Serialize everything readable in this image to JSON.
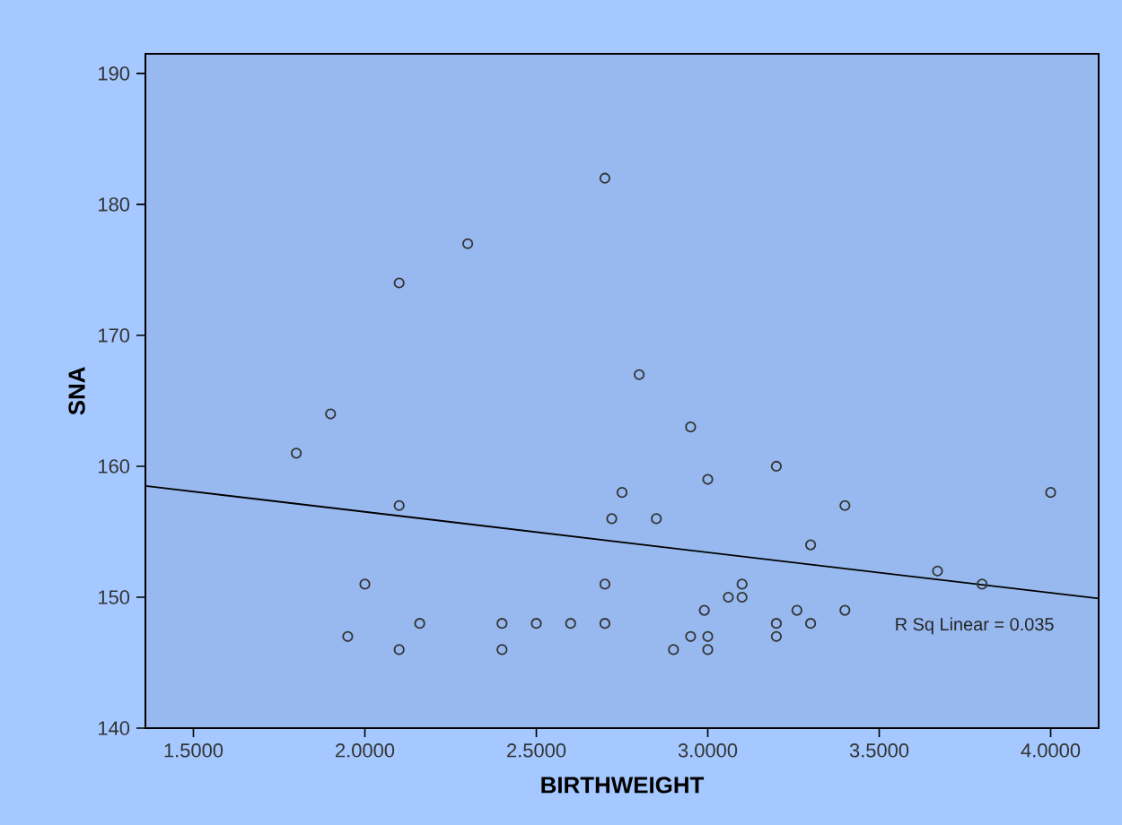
{
  "chart_data": {
    "type": "scatter",
    "xlabel": "BIRTHWEIGHT",
    "ylabel": "SNA",
    "xlim": [
      1.36,
      4.14
    ],
    "ylim": [
      140,
      191.5
    ],
    "xticks": [
      {
        "value": 1.5,
        "label": "1.5000"
      },
      {
        "value": 2.0,
        "label": "2.0000"
      },
      {
        "value": 2.5,
        "label": "2.5000"
      },
      {
        "value": 3.0,
        "label": "3.0000"
      },
      {
        "value": 3.5,
        "label": "3.5000"
      },
      {
        "value": 4.0,
        "label": "4.0000"
      }
    ],
    "yticks": [
      140,
      150,
      160,
      170,
      180,
      190
    ],
    "grid": false,
    "annotations": [
      "R Sq Linear = 0.035"
    ],
    "series": [
      {
        "color": "#333333",
        "marker": "circle",
        "x": [
          1.8,
          1.9,
          1.95,
          2.0,
          2.1,
          2.1,
          2.1,
          2.16,
          2.3,
          2.4,
          2.4,
          2.5,
          2.6,
          2.7,
          2.7,
          2.7,
          2.72,
          2.75,
          2.8,
          2.85,
          2.9,
          2.95,
          2.95,
          2.99,
          3.0,
          3.0,
          3.0,
          3.06,
          3.1,
          3.1,
          3.2,
          3.2,
          3.2,
          3.26,
          3.3,
          3.3,
          3.4,
          3.4,
          3.67,
          3.8,
          4.0
        ],
        "values": [
          161,
          164,
          147,
          151,
          157,
          146,
          174,
          148,
          177,
          148,
          146,
          148,
          148,
          148,
          151,
          182,
          156,
          158,
          167,
          156,
          146,
          163,
          147,
          149,
          159,
          147,
          146,
          150,
          151,
          150,
          160,
          148,
          147,
          149,
          154,
          148,
          157,
          149,
          152,
          151,
          158
        ]
      },
      {
        "type": "line",
        "color": "#000000",
        "marker": "none",
        "line_style": "solid",
        "x": [
          1.36,
          4.14
        ],
        "values": [
          158.5,
          149.9
        ]
      }
    ]
  }
}
